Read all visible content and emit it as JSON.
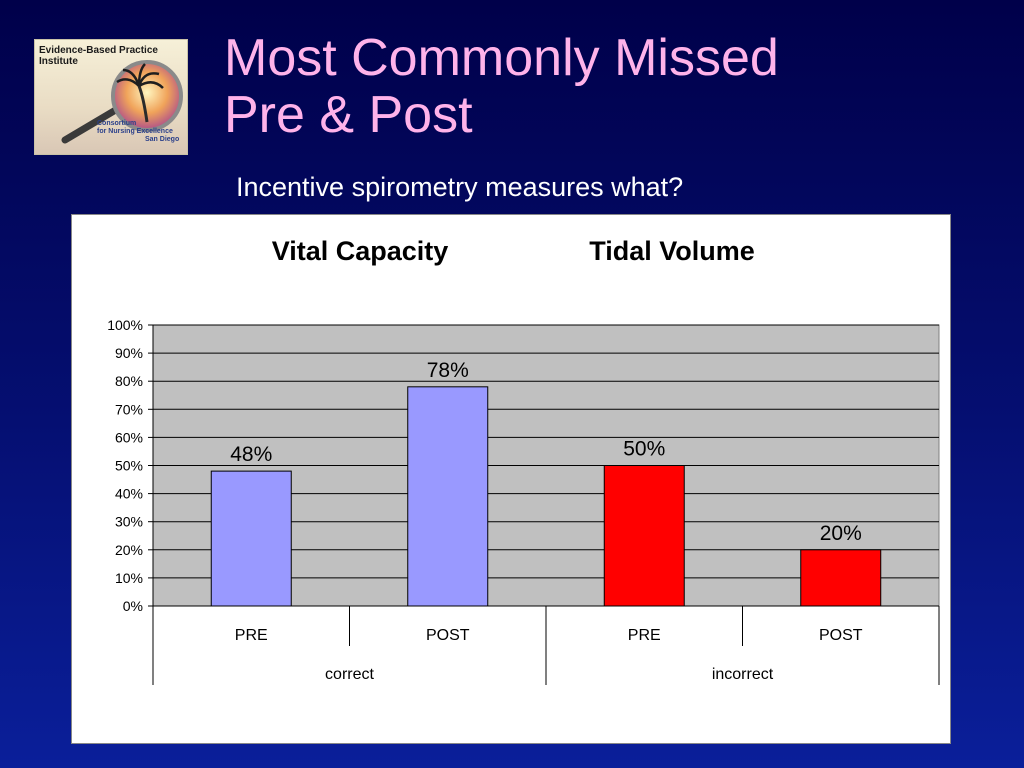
{
  "slide": {
    "title_lines": [
      "Most Commonly Missed",
      "Pre & Post"
    ],
    "question": "Incentive spirometry measures what?"
  },
  "logo": {
    "line1": "Evidence-Based Practice",
    "line2": "Institute",
    "sub1": "Consortium",
    "sub2": "for Nursing Excellence",
    "sub3": "San Diego"
  },
  "colors": {
    "background": "#00004a",
    "title": "#ffb3ea",
    "pre_post_correct": "#9999ff",
    "incorrect": "#ff0000",
    "plot_background": "#c0c0c0"
  },
  "chart_data": {
    "type": "bar",
    "title": "",
    "annotations": [
      "Vital Capacity",
      "Tidal Volume"
    ],
    "categories": [
      "PRE",
      "POST",
      "PRE",
      "POST"
    ],
    "groups": [
      {
        "label": "correct",
        "categories": [
          "PRE",
          "POST"
        ]
      },
      {
        "label": "incorrect",
        "categories": [
          "PRE",
          "POST"
        ]
      }
    ],
    "values": [
      48,
      78,
      50,
      20
    ],
    "data_labels": [
      "48%",
      "78%",
      "50%",
      "20%"
    ],
    "bar_colors": [
      "#9999ff",
      "#9999ff",
      "#ff0000",
      "#ff0000"
    ],
    "ylim": [
      0,
      100
    ],
    "yticks": [
      "0%",
      "10%",
      "20%",
      "30%",
      "40%",
      "50%",
      "60%",
      "70%",
      "80%",
      "90%",
      "100%"
    ],
    "xlabel": "",
    "ylabel": "",
    "grid": true,
    "legend": "none"
  }
}
